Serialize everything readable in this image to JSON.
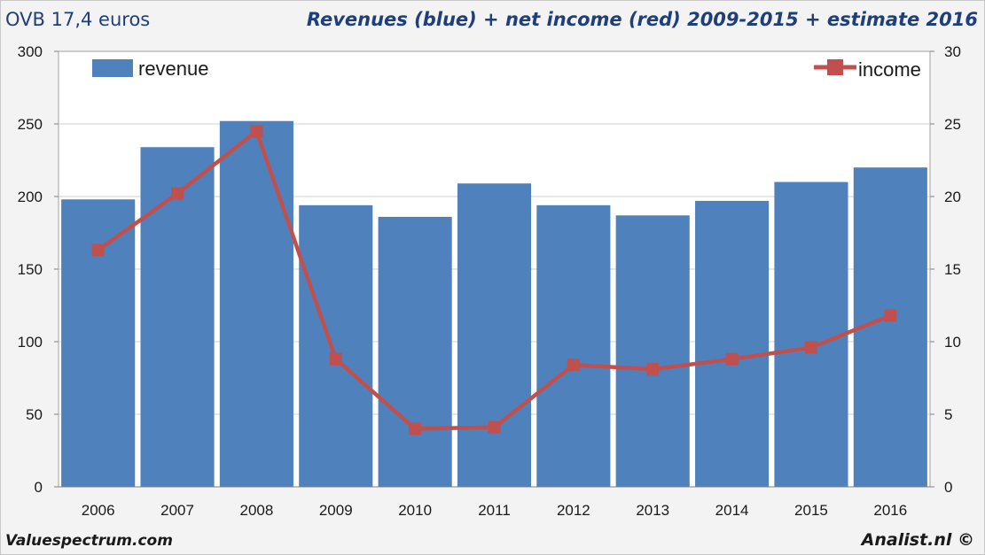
{
  "header": {
    "left_title": "OVB 17,4 euros",
    "right_title": "Revenues (blue) + net income (red) 2009-2015 + estimate 2016"
  },
  "footer": {
    "left": "Valuespectrum.com",
    "right": "Analist.nl ©"
  },
  "chart_data": {
    "type": "bar",
    "categories": [
      "2006",
      "2007",
      "2008",
      "2009",
      "2010",
      "2011",
      "2012",
      "2013",
      "2014",
      "2015",
      "2016"
    ],
    "series": [
      {
        "name": "revenue",
        "type": "bar",
        "axis": "left",
        "color": "#4f81bd",
        "values": [
          198,
          234,
          252,
          194,
          186,
          209,
          194,
          187,
          197,
          210,
          220
        ]
      },
      {
        "name": "income",
        "type": "line",
        "axis": "right",
        "color": "#c0504d",
        "values": [
          16.3,
          20.2,
          24.5,
          8.8,
          4.0,
          4.1,
          8.4,
          8.1,
          8.8,
          9.6,
          11.8
        ]
      }
    ],
    "left_axis": {
      "ylim": [
        0,
        300
      ],
      "ticks": [
        "0",
        "50",
        "100",
        "150",
        "200",
        "250",
        "300"
      ]
    },
    "right_axis": {
      "ylim": [
        0,
        30
      ],
      "ticks": [
        "0",
        "5",
        "10",
        "15",
        "20",
        "25",
        "30"
      ]
    },
    "grid": "horizontal",
    "legend": {
      "revenue_position": "top-left",
      "income_position": "top-right"
    }
  }
}
